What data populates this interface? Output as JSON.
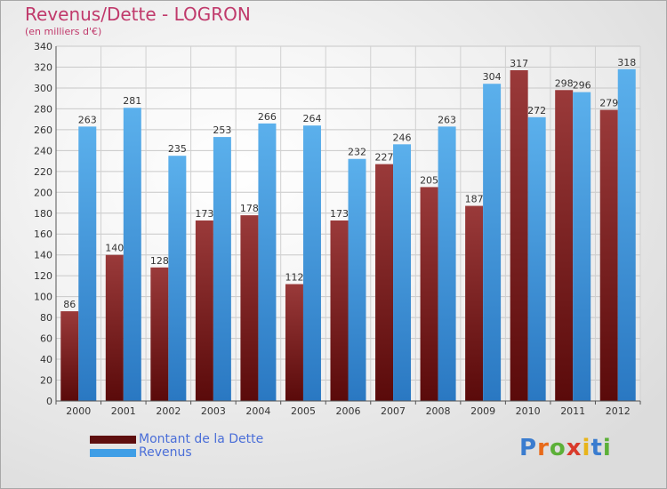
{
  "title": "Revenus/Dette - LOGRON",
  "subtitle": "(en milliers d'€)",
  "brand": {
    "text": "Proxiti",
    "letters": [
      "P",
      "r",
      "o",
      "x",
      "i",
      "t",
      "i"
    ],
    "colors": [
      "#3a7ccf",
      "#e86a1a",
      "#5cb038",
      "#d93a2b",
      "#e8b41a",
      "#3a7ccf",
      "#5cb038"
    ]
  },
  "colors": {
    "dette_top": "#9a3a3a",
    "dette_bottom": "#5a0a0a",
    "revenus_top": "#5bb0ec",
    "revenus_bottom": "#2a78c2",
    "legend_dette": "#5e0f0f",
    "legend_revenus": "#3f9ee6",
    "title": "#c0396b",
    "legend_text": "#4a6ed8"
  },
  "chart_data": {
    "type": "bar",
    "title": "Revenus/Dette - LOGRON",
    "subtitle": "(en milliers d'€)",
    "xlabel": "",
    "ylabel": "",
    "ylim": [
      0,
      340
    ],
    "yticks": [
      0,
      20,
      40,
      60,
      80,
      100,
      120,
      140,
      160,
      180,
      200,
      220,
      240,
      260,
      280,
      300,
      320,
      340
    ],
    "grid": true,
    "legend_position": "bottom-left",
    "categories": [
      "2000",
      "2001",
      "2002",
      "2003",
      "2004",
      "2005",
      "2006",
      "2007",
      "2008",
      "2009",
      "2010",
      "2011",
      "2012"
    ],
    "series": [
      {
        "name": "Montant de la Dette",
        "values": [
          86,
          140,
          128,
          173,
          178,
          112,
          173,
          227,
          205,
          187,
          317,
          298,
          279
        ]
      },
      {
        "name": "Revenus",
        "values": [
          263,
          281,
          235,
          253,
          266,
          264,
          232,
          246,
          263,
          304,
          272,
          296,
          318
        ]
      }
    ]
  }
}
